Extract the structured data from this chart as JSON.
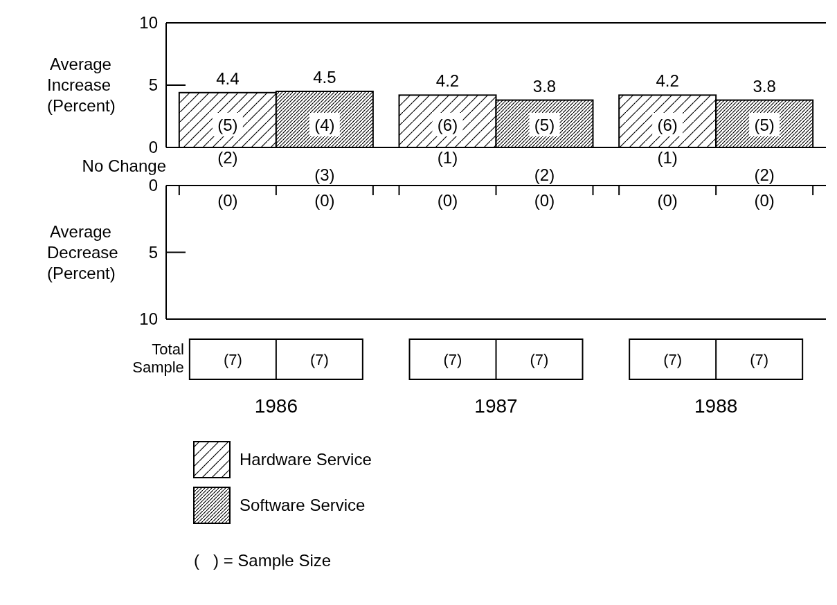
{
  "chart_data": [
    {
      "type": "bar",
      "ylabel": "Average Increase (Percent)",
      "categories": [
        "1986",
        "1987",
        "1988"
      ],
      "tick_labels": "y",
      "series": [
        {
          "name": "Hardware Service",
          "color": "#000000",
          "values": [
            4.4,
            4.2,
            4.2
          ]
        },
        {
          "name": "Software Service",
          "color": "#000000",
          "values": [
            4.5,
            3.8,
            3.8
          ]
        }
      ],
      "ylim": [
        0,
        10
      ],
      "yticks": [
        0,
        5,
        10
      ],
      "data_labels": true,
      "legend": "bottom",
      "annotations": [
        "(5)",
        "(4)",
        "(6)",
        "(5)",
        "(6)",
        "(5)"
      ]
    },
    {
      "type": "bar",
      "ylabel": "Average Decrease (Percent)",
      "categories": [
        "1986",
        "1987",
        "1988"
      ],
      "series": [
        {
          "color": "#000000",
          "values": [
            null,
            null,
            null
          ]
        },
        {
          "color": "#000000",
          "values": [
            null,
            null,
            null
          ]
        }
      ],
      "ylim": [
        10,
        0
      ],
      "yticks": [
        0,
        5,
        10
      ],
      "annotations": [
        "No Change",
        "(2)",
        "(3)",
        "(1)",
        "(2)",
        "(1)",
        "(2)",
        "(0)",
        "(0)",
        "(0)",
        "(0)",
        "(0)",
        "(0)"
      ]
    },
    {
      "type": "other",
      "annotations": [
        "Total Sample",
        "(7)",
        "(7)",
        "(7)",
        "(7)",
        "(7)",
        "(7)",
        "(   ) = Sample Size"
      ]
    }
  ]
}
